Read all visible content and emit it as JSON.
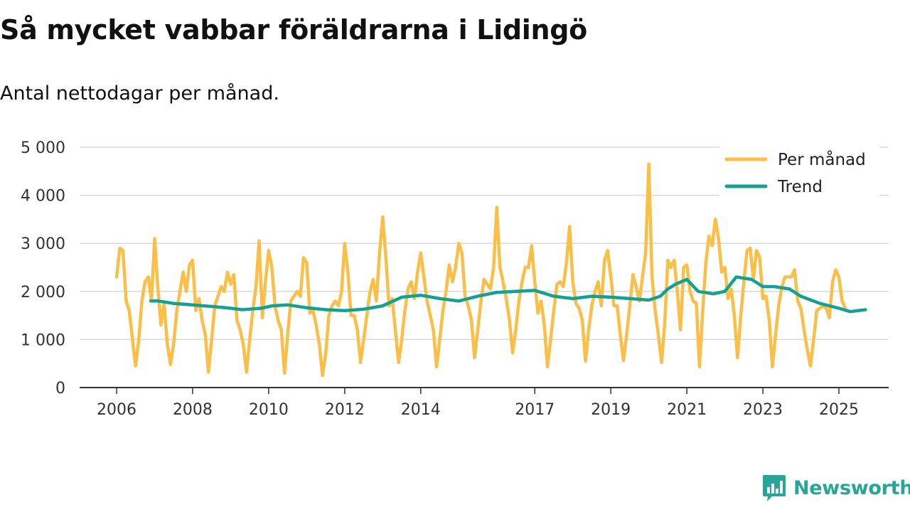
{
  "title": "Så mycket vabbar föräldrarna i Lidingö",
  "subtitle": "Antal nettodagar per månad.",
  "brand": "Newsworthy",
  "colors": {
    "monthly": "#fbbf47",
    "trend": "#15a094",
    "grid": "#d9d9d9",
    "axis": "#333333",
    "brand": "#26a69a"
  },
  "chart_data": {
    "type": "line",
    "title": "Så mycket vabbar föräldrarna i Lidingö",
    "xlabel": "",
    "ylabel": "Antal nettodagar per månad",
    "ylim": [
      0,
      5000
    ],
    "xlim": [
      2006.0,
      2026.3
    ],
    "yticks": [
      0,
      1000,
      2000,
      3000,
      4000,
      5000
    ],
    "ytick_labels": [
      "0",
      "1 000",
      "2 000",
      "3 000",
      "4 000",
      "5 000"
    ],
    "xticks": [
      2006,
      2008,
      2010,
      2012,
      2014,
      2017,
      2019,
      2021,
      2023,
      2025
    ],
    "xtick_labels": [
      "2006",
      "2008",
      "2010",
      "2012",
      "2014",
      "2017",
      "2019",
      "2021",
      "2023",
      "2025"
    ],
    "legend": {
      "position": "top-right",
      "entries": [
        "Per månad",
        "Trend"
      ]
    },
    "series": [
      {
        "name": "Per månad",
        "start": 2006.0,
        "step_months": 1,
        "values": [
          2300,
          2900,
          2850,
          1800,
          1600,
          1000,
          450,
          1000,
          1800,
          2200,
          2300,
          1800,
          3100,
          2100,
          1300,
          1750,
          900,
          480,
          900,
          1600,
          2000,
          2400,
          2000,
          2550,
          2650,
          1600,
          1850,
          1400,
          1100,
          320,
          1000,
          1700,
          1900,
          2100,
          2000,
          2400,
          2150,
          2350,
          1400,
          1200,
          900,
          320,
          1000,
          1600,
          2100,
          3050,
          1450,
          2200,
          2850,
          2500,
          1700,
          1400,
          1200,
          300,
          1100,
          1800,
          1900,
          2000,
          1900,
          2700,
          2600,
          1550,
          1600,
          1300,
          900,
          250,
          700,
          1500,
          1700,
          1800,
          1700,
          2000,
          3000,
          2400,
          1500,
          1500,
          1200,
          520,
          1000,
          1500,
          2000,
          2250,
          1800,
          2800,
          3550,
          2700,
          1700,
          1850,
          1200,
          520,
          1000,
          1600,
          2050,
          2200,
          1850,
          2400,
          2800,
          2300,
          1800,
          1500,
          1200,
          430,
          1000,
          1600,
          2000,
          2550,
          2200,
          2500,
          3000,
          2800,
          1900,
          1700,
          1400,
          620,
          1200,
          1800,
          2250,
          2150,
          2050,
          2500,
          3750,
          2500,
          2200,
          1850,
          1400,
          720,
          1200,
          1800,
          2200,
          2500,
          2500,
          2950,
          2200,
          1550,
          1800,
          1300,
          430,
          1000,
          1600,
          2150,
          2200,
          2100,
          2600,
          3350,
          2200,
          1750,
          1650,
          1400,
          550,
          1200,
          1700,
          2000,
          2200,
          1700,
          2650,
          2850,
          2300,
          1700,
          1700,
          1100,
          560,
          1100,
          1700,
          2350,
          2100,
          1800,
          2300,
          2800,
          4650,
          2300,
          1600,
          1100,
          520,
          1300,
          2650,
          2500,
          2650,
          2000,
          1200,
          2500,
          2550,
          2000,
          1800,
          1750,
          430,
          1600,
          2600,
          3150,
          2950,
          3500,
          3100,
          2400,
          2500,
          1850,
          2050,
          1500,
          620,
          1500,
          2200,
          2850,
          2900,
          2250,
          2850,
          2700,
          1850,
          1900,
          1400,
          430,
          1100,
          1700,
          2100,
          2300,
          2300,
          2300,
          2450,
          1800,
          1650,
          1200,
          800,
          450,
          1000,
          1600,
          1650,
          1700,
          1650,
          1450,
          2200,
          2450,
          2300,
          1800,
          1650
        ]
      },
      {
        "name": "Trend",
        "x": [
          2006.9,
          2007.1,
          2007.5,
          2008.0,
          2008.3,
          2008.6,
          2009.0,
          2009.3,
          2009.8,
          2010.1,
          2010.5,
          2011.0,
          2011.5,
          2012.0,
          2012.5,
          2013.0,
          2013.5,
          2014.0,
          2014.5,
          2015.0,
          2015.5,
          2016.0,
          2016.5,
          2017.0,
          2017.5,
          2018.0,
          2018.5,
          2019.0,
          2019.5,
          2020.0,
          2020.3,
          2020.5,
          2020.7,
          2021.0,
          2021.3,
          2021.7,
          2022.0,
          2022.3,
          2022.7,
          2023.0,
          2023.3,
          2023.7,
          2024.0,
          2024.5,
          2025.0,
          2025.3,
          2025.7
        ],
        "values": [
          1800,
          1800,
          1750,
          1720,
          1700,
          1680,
          1650,
          1620,
          1650,
          1700,
          1720,
          1660,
          1620,
          1600,
          1630,
          1700,
          1880,
          1920,
          1850,
          1800,
          1900,
          1980,
          2000,
          2020,
          1900,
          1850,
          1900,
          1880,
          1850,
          1820,
          1900,
          2050,
          2150,
          2250,
          2000,
          1950,
          2000,
          2300,
          2250,
          2100,
          2100,
          2050,
          1900,
          1750,
          1650,
          1580,
          1620
        ]
      }
    ]
  }
}
